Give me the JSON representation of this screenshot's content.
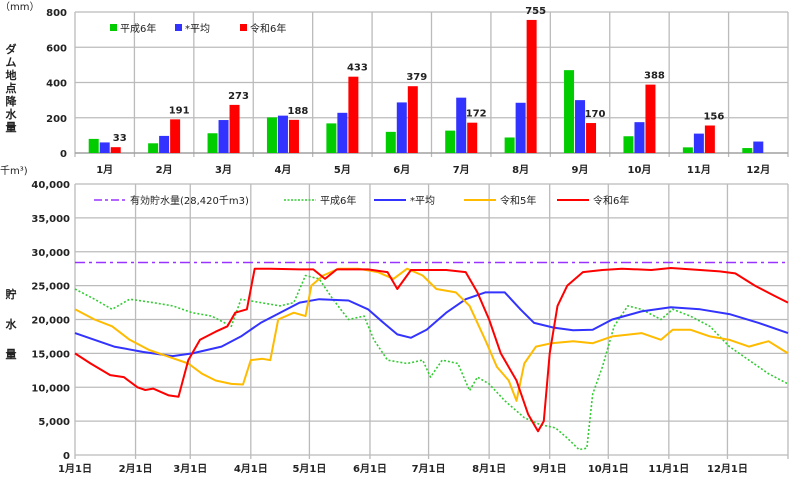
{
  "chart_data": [
    {
      "type": "bar",
      "title": "",
      "ylabel": "ダム地点降水量",
      "yunit": "（mm）",
      "ylim": [
        0,
        800
      ],
      "yticks": [
        "0",
        "200",
        "400",
        "600",
        "800"
      ],
      "categories": [
        "1月",
        "2月",
        "3月",
        "4月",
        "5月",
        "6月",
        "7月",
        "8月",
        "9月",
        "10月",
        "11月",
        "12月"
      ],
      "legend_position": "top-left",
      "series": [
        {
          "name": "平成6年",
          "color": "#00cc00",
          "values": [
            80,
            55,
            112,
            202,
            168,
            120,
            127,
            88,
            470,
            95,
            32,
            28
          ]
        },
        {
          "name": "*平均",
          "color": "#3333ff",
          "values": [
            60,
            97,
            187,
            212,
            228,
            287,
            314,
            285,
            300,
            175,
            110,
            65
          ]
        },
        {
          "name": "令和6年",
          "color": "#ff0000",
          "values": [
            33,
            191,
            273,
            188,
            433,
            379,
            172,
            755,
            170,
            388,
            156,
            null
          ],
          "data_labels": [
            "33",
            "191",
            "273",
            "188",
            "433",
            "379",
            "172",
            "755",
            "170",
            "388",
            "156",
            ""
          ]
        }
      ],
      "grid": true
    },
    {
      "type": "line",
      "ylabel": "貯水量",
      "yunit": "千m³)",
      "ylim": [
        0,
        40000
      ],
      "yticks": [
        "0",
        "5,000",
        "10,000",
        "15,000",
        "20,000",
        "25,000",
        "30,000",
        "35,000",
        "40,000"
      ],
      "xticks": [
        "1月1日",
        "2月1日",
        "3月1日",
        "4月1日",
        "5月1日",
        "6月1日",
        "7月1日",
        "8月1日",
        "9月1日",
        "10月1日",
        "11月1日",
        "12月1日"
      ],
      "xtick_days": [
        0,
        31,
        59,
        90,
        120,
        151,
        181,
        212,
        243,
        273,
        304,
        334
      ],
      "xlim_days": [
        0,
        365
      ],
      "legend_position": "top",
      "grid": true,
      "series": [
        {
          "name": "有効貯水量(28,420千m3)",
          "color": "#9933ff",
          "style": "dashdot",
          "points": [
            [
              0,
              28420
            ],
            [
              365,
              28420
            ]
          ]
        },
        {
          "name": "平成6年",
          "color": "#33cc33",
          "style": "dotted",
          "points": [
            [
              0,
              24500
            ],
            [
              10,
              23000
            ],
            [
              19,
              21500
            ],
            [
              28,
              23000
            ],
            [
              40,
              22500
            ],
            [
              50,
              22000
            ],
            [
              60,
              21000
            ],
            [
              70,
              20500
            ],
            [
              80,
              19000
            ],
            [
              85,
              23000
            ],
            [
              95,
              22500
            ],
            [
              105,
              22000
            ],
            [
              112,
              22500
            ],
            [
              118,
              26500
            ],
            [
              125,
              26000
            ],
            [
              132,
              23000
            ],
            [
              140,
              20000
            ],
            [
              148,
              20500
            ],
            [
              153,
              17000
            ],
            [
              160,
              14000
            ],
            [
              170,
              13500
            ],
            [
              178,
              14000
            ],
            [
              182,
              11500
            ],
            [
              188,
              14000
            ],
            [
              196,
              13500
            ],
            [
              202,
              9500
            ],
            [
              206,
              11500
            ],
            [
              212,
              10500
            ],
            [
              220,
              8000
            ],
            [
              230,
              5500
            ],
            [
              238,
              4500
            ],
            [
              246,
              4000
            ],
            [
              252,
              2500
            ],
            [
              258,
              800
            ],
            [
              262,
              1000
            ],
            [
              265,
              9000
            ],
            [
              270,
              13000
            ],
            [
              276,
              19000
            ],
            [
              283,
              22000
            ],
            [
              290,
              21500
            ],
            [
              300,
              20000
            ],
            [
              306,
              21500
            ],
            [
              315,
              20500
            ],
            [
              325,
              19000
            ],
            [
              335,
              16000
            ],
            [
              345,
              14000
            ],
            [
              355,
              12000
            ],
            [
              365,
              10500
            ]
          ]
        },
        {
          "name": "*平均",
          "color": "#3333ff",
          "style": "solid",
          "points": [
            [
              0,
              18000
            ],
            [
              10,
              17000
            ],
            [
              20,
              16000
            ],
            [
              35,
              15200
            ],
            [
              50,
              14600
            ],
            [
              60,
              15000
            ],
            [
              75,
              16000
            ],
            [
              85,
              17500
            ],
            [
              95,
              19500
            ],
            [
              105,
              21000
            ],
            [
              115,
              22500
            ],
            [
              125,
              23000
            ],
            [
              140,
              22800
            ],
            [
              150,
              21500
            ],
            [
              158,
              19500
            ],
            [
              165,
              17800
            ],
            [
              172,
              17300
            ],
            [
              180,
              18500
            ],
            [
              190,
              21000
            ],
            [
              200,
              23000
            ],
            [
              210,
              24000
            ],
            [
              220,
              24000
            ],
            [
              228,
              21500
            ],
            [
              235,
              19500
            ],
            [
              245,
              18800
            ],
            [
              255,
              18400
            ],
            [
              265,
              18500
            ],
            [
              275,
              20000
            ],
            [
              290,
              21200
            ],
            [
              305,
              21800
            ],
            [
              320,
              21500
            ],
            [
              335,
              20800
            ],
            [
              350,
              19500
            ],
            [
              365,
              18000
            ]
          ]
        },
        {
          "name": "令和5年",
          "color": "#ffbb00",
          "style": "solid",
          "points": [
            [
              0,
              21500
            ],
            [
              10,
              20000
            ],
            [
              19,
              19000
            ],
            [
              28,
              17000
            ],
            [
              38,
              15500
            ],
            [
              48,
              14500
            ],
            [
              58,
              13500
            ],
            [
              65,
              12000
            ],
            [
              72,
              11000
            ],
            [
              80,
              10500
            ],
            [
              86,
              10400
            ],
            [
              90,
              14000
            ],
            [
              96,
              14200
            ],
            [
              100,
              14000
            ],
            [
              104,
              20000
            ],
            [
              112,
              21000
            ],
            [
              118,
              20500
            ],
            [
              121,
              25000
            ],
            [
              127,
              26500
            ],
            [
              135,
              27500
            ],
            [
              145,
              27500
            ],
            [
              155,
              27000
            ],
            [
              163,
              26000
            ],
            [
              170,
              27500
            ],
            [
              178,
              26500
            ],
            [
              185,
              24500
            ],
            [
              195,
              24000
            ],
            [
              202,
              22000
            ],
            [
              210,
              17000
            ],
            [
              216,
              13000
            ],
            [
              222,
              11000
            ],
            [
              226,
              8000
            ],
            [
              230,
              13500
            ],
            [
              236,
              16000
            ],
            [
              244,
              16500
            ],
            [
              255,
              16800
            ],
            [
              265,
              16500
            ],
            [
              275,
              17500
            ],
            [
              290,
              18000
            ],
            [
              300,
              17000
            ],
            [
              306,
              18500
            ],
            [
              315,
              18500
            ],
            [
              325,
              17500
            ],
            [
              335,
              17000
            ],
            [
              345,
              16000
            ],
            [
              355,
              16800
            ],
            [
              365,
              15000
            ]
          ]
        },
        {
          "name": "令和6年",
          "color": "#ff0000",
          "style": "solid",
          "points": [
            [
              0,
              15000
            ],
            [
              8,
              13500
            ],
            [
              18,
              11800
            ],
            [
              25,
              11500
            ],
            [
              32,
              10000
            ],
            [
              36,
              9600
            ],
            [
              40,
              9800
            ],
            [
              48,
              8800
            ],
            [
              53,
              8600
            ],
            [
              58,
              14000
            ],
            [
              64,
              17000
            ],
            [
              72,
              18200
            ],
            [
              78,
              19000
            ],
            [
              82,
              21000
            ],
            [
              88,
              21500
            ],
            [
              92,
              27500
            ],
            [
              100,
              27500
            ],
            [
              115,
              27400
            ],
            [
              122,
              27400
            ],
            [
              128,
              26000
            ],
            [
              134,
              27400
            ],
            [
              150,
              27400
            ],
            [
              160,
              27000
            ],
            [
              165,
              24500
            ],
            [
              172,
              27300
            ],
            [
              190,
              27300
            ],
            [
              200,
              27000
            ],
            [
              206,
              24000
            ],
            [
              212,
              20000
            ],
            [
              218,
              15000
            ],
            [
              226,
              11000
            ],
            [
              232,
              6000
            ],
            [
              237,
              3500
            ],
            [
              240,
              5000
            ],
            [
              243,
              15000
            ],
            [
              247,
              22000
            ],
            [
              252,
              25000
            ],
            [
              260,
              27000
            ],
            [
              270,
              27300
            ],
            [
              280,
              27500
            ],
            [
              295,
              27300
            ],
            [
              305,
              27600
            ],
            [
              320,
              27300
            ],
            [
              330,
              27100
            ],
            [
              338,
              26800
            ],
            [
              348,
              25000
            ],
            [
              358,
              23500
            ],
            [
              365,
              22500
            ]
          ]
        }
      ]
    }
  ]
}
